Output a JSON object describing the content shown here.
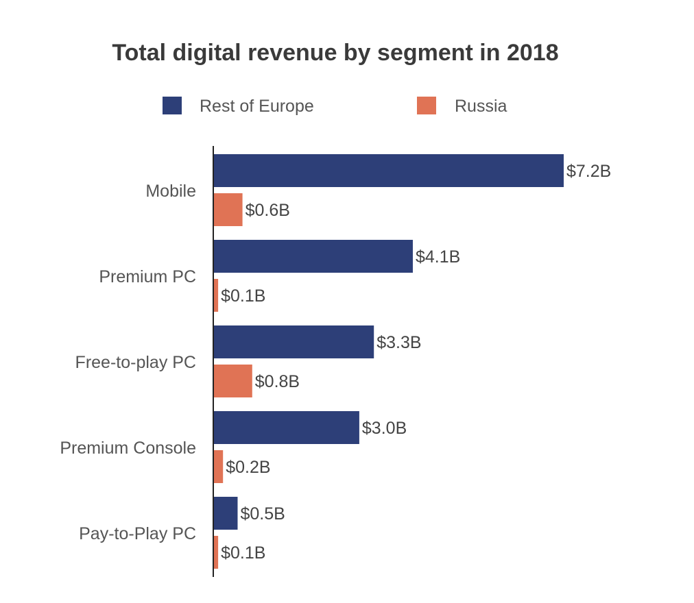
{
  "colors": {
    "rest_of_europe": "#2d3f78",
    "russia": "#e07355",
    "axis": "#222222",
    "title": "#3a3a3a",
    "text": "#555555"
  },
  "chart_data": {
    "type": "bar",
    "orientation": "horizontal",
    "title": "Total digital revenue by segment in 2018",
    "xlabel": "",
    "ylabel": "",
    "unit": "$B",
    "categories": [
      "Mobile",
      "Premium PC",
      "Free-to-play PC",
      "Premium Console",
      "Pay-to-Play PC"
    ],
    "series": [
      {
        "name": "Rest of Europe",
        "values": [
          7.2,
          4.1,
          3.3,
          3.0,
          0.5
        ],
        "labels": [
          "$7.2B",
          "$4.1B",
          "$3.3B",
          "$3.0B",
          "$0.5B"
        ]
      },
      {
        "name": "Russia",
        "values": [
          0.6,
          0.1,
          0.8,
          0.2,
          0.1
        ],
        "labels": [
          "$0.6B",
          "$0.1B",
          "$0.8B",
          "$0.2B",
          "$0.1B"
        ]
      }
    ],
    "xlim": [
      0,
      8
    ],
    "grid": false,
    "legend_position": "top"
  }
}
